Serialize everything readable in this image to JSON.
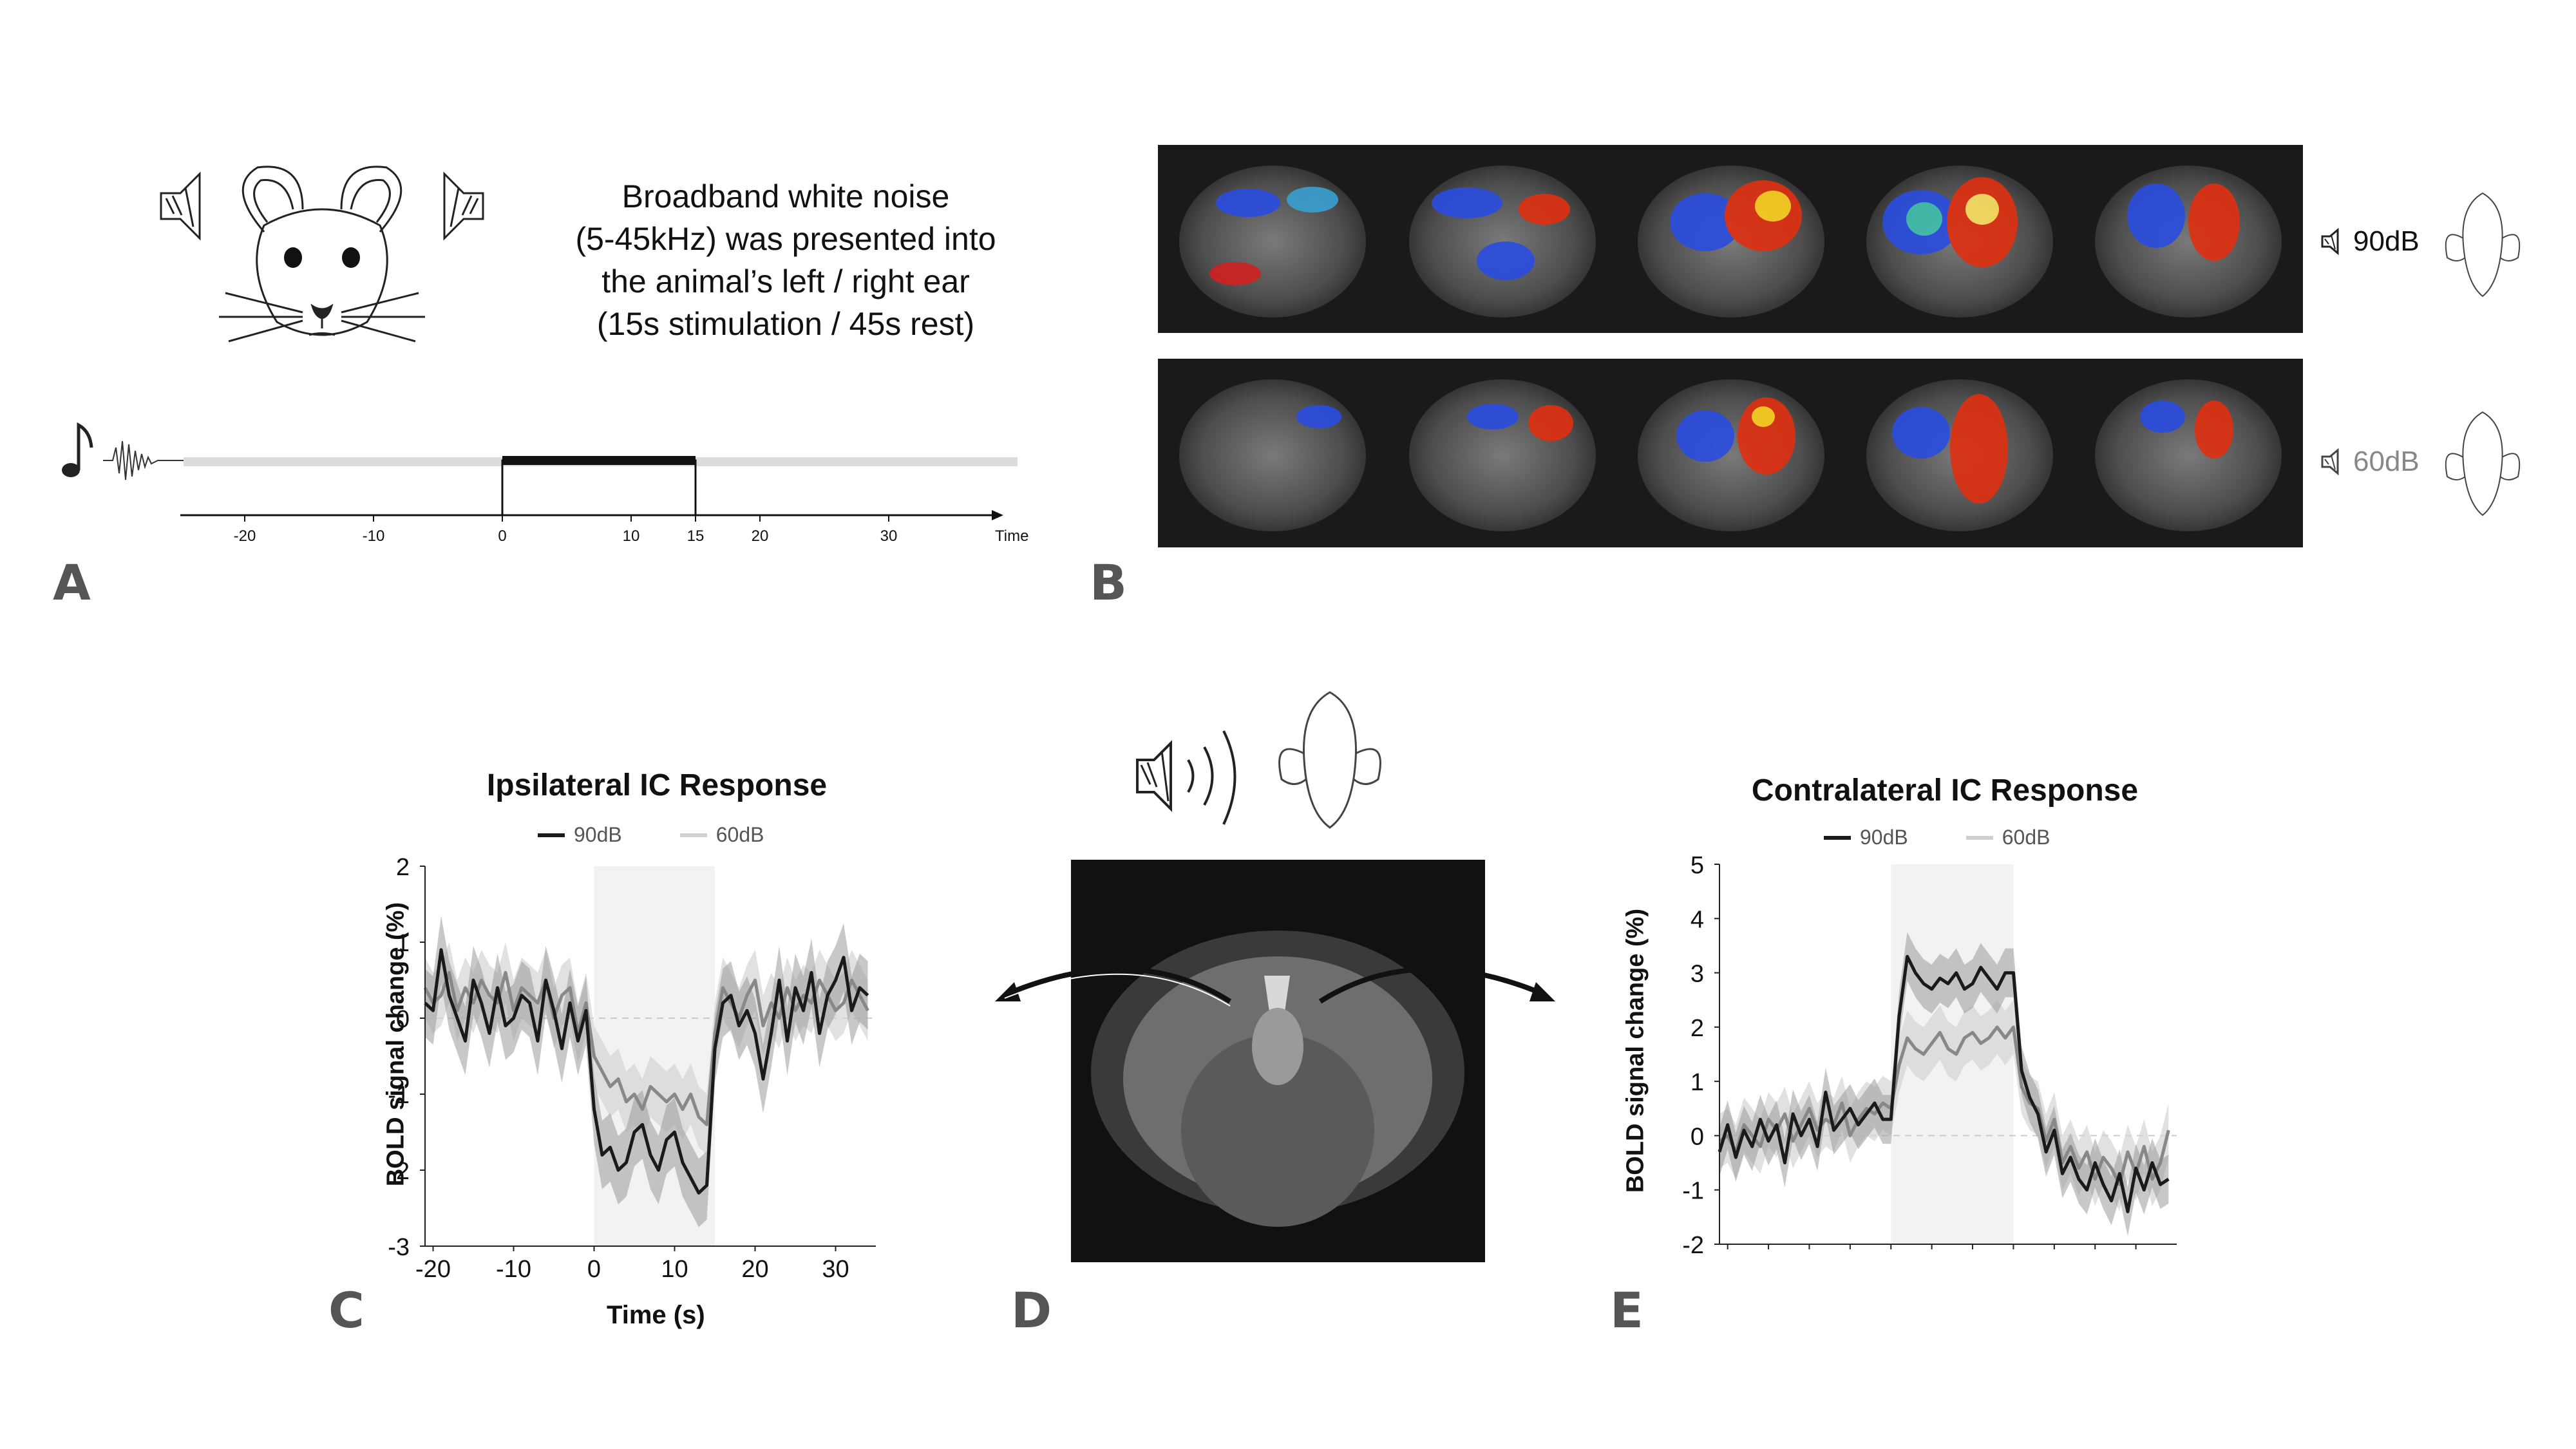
{
  "panels": {
    "a": "A",
    "b": "B",
    "c": "C",
    "d": "D",
    "e": "E"
  },
  "description": {
    "line1": "Broadband white noise",
    "line2": "(5-45kHz) was presented into",
    "line3": "the animal’s left / right ear",
    "line4": "(15s stimulation / 45s rest)"
  },
  "timeline": {
    "ticks": [
      "-20",
      "-10",
      "0",
      "10",
      "15",
      "20",
      "30"
    ],
    "tick_values": [
      -20,
      -10,
      0,
      10,
      15,
      20,
      30
    ],
    "axis_label": "Time",
    "stim_on": 0,
    "stim_off": 15
  },
  "panel_b": {
    "row1_label": "90dB",
    "row2_label": "60dB",
    "row1_color": "#111111",
    "row2_color": "#888888"
  },
  "chart_data": [
    {
      "type": "line",
      "title": "Ipsilateral IC Response",
      "xlabel": "Time (s)",
      "ylabel": "BOLD signal change (%)",
      "xlim": [
        -21,
        35
      ],
      "ylim": [
        -3,
        2
      ],
      "x_ticks": [
        "-20",
        "-10",
        "0",
        "10",
        "20",
        "30"
      ],
      "x_tick_values": [
        -20,
        -10,
        0,
        10,
        20,
        30
      ],
      "y_ticks": [
        "2",
        "1",
        "0",
        "-1",
        "-2",
        "-3"
      ],
      "y_tick_values": [
        2,
        1,
        0,
        -1,
        -2,
        -3
      ],
      "shaded_region": [
        0,
        15
      ],
      "x": [
        -21,
        -20,
        -19,
        -18,
        -17,
        -16,
        -15,
        -14,
        -13,
        -12,
        -11,
        -10,
        -9,
        -8,
        -7,
        -6,
        -5,
        -4,
        -3,
        -2,
        -1,
        0,
        1,
        2,
        3,
        4,
        5,
        6,
        7,
        8,
        9,
        10,
        11,
        12,
        13,
        14,
        15,
        16,
        17,
        18,
        19,
        20,
        21,
        22,
        23,
        24,
        25,
        26,
        27,
        28,
        29,
        30,
        31,
        32,
        33,
        34
      ],
      "series": [
        {
          "name": "90dB",
          "color": "#1a1a1a",
          "values": [
            0.2,
            0.1,
            0.9,
            0.3,
            0.0,
            -0.3,
            0.5,
            0.2,
            -0.2,
            0.4,
            -0.1,
            0.0,
            0.3,
            0.2,
            -0.3,
            0.5,
            0.1,
            -0.4,
            0.2,
            -0.3,
            0.1,
            -1.2,
            -1.8,
            -1.7,
            -2.0,
            -1.9,
            -1.5,
            -1.4,
            -1.8,
            -2.0,
            -1.6,
            -1.5,
            -1.9,
            -2.1,
            -2.3,
            -2.2,
            -0.4,
            0.2,
            0.3,
            -0.1,
            0.1,
            -0.2,
            -0.8,
            -0.2,
            0.5,
            -0.3,
            0.4,
            0.1,
            0.6,
            -0.2,
            0.3,
            0.5,
            0.8,
            0.1,
            0.4,
            0.3
          ],
          "band": 0.45
        },
        {
          "name": "60dB",
          "color": "#888888",
          "values": [
            0.4,
            0.2,
            0.3,
            0.6,
            0.1,
            0.4,
            0.2,
            0.5,
            0.3,
            0.2,
            0.6,
            0.1,
            0.4,
            0.3,
            0.2,
            0.5,
            0.0,
            0.3,
            0.4,
            -0.2,
            0.2,
            -0.5,
            -0.7,
            -0.9,
            -0.8,
            -1.1,
            -1.0,
            -1.2,
            -0.9,
            -1.0,
            -1.1,
            -1.0,
            -1.2,
            -1.0,
            -1.3,
            -1.4,
            -0.2,
            0.4,
            0.2,
            0.0,
            0.3,
            0.5,
            -0.1,
            0.2,
            0.0,
            0.4,
            0.1,
            0.3,
            0.2,
            0.5,
            0.3,
            0.1,
            0.2,
            0.5,
            0.3,
            0.1
          ],
          "band": 0.4
        }
      ],
      "legend_position": "top"
    },
    {
      "type": "line",
      "title": "Contralateral IC Response",
      "xlabel": "",
      "ylabel": "BOLD signal change (%)",
      "xlim": [
        -21,
        35
      ],
      "ylim": [
        -2,
        5
      ],
      "x_ticks": [],
      "y_ticks": [
        "5",
        "4",
        "3",
        "2",
        "1",
        "0",
        "-1",
        "-2"
      ],
      "y_tick_values": [
        5,
        4,
        3,
        2,
        1,
        0,
        -1,
        -2
      ],
      "shaded_region": [
        0,
        15
      ],
      "x": [
        -21,
        -20,
        -19,
        -18,
        -17,
        -16,
        -15,
        -14,
        -13,
        -12,
        -11,
        -10,
        -9,
        -8,
        -7,
        -6,
        -5,
        -4,
        -3,
        -2,
        -1,
        0,
        1,
        2,
        3,
        4,
        5,
        6,
        7,
        8,
        9,
        10,
        11,
        12,
        13,
        14,
        15,
        16,
        17,
        18,
        19,
        20,
        21,
        22,
        23,
        24,
        25,
        26,
        27,
        28,
        29,
        30,
        31,
        32,
        33,
        34
      ],
      "series": [
        {
          "name": "90dB",
          "color": "#1a1a1a",
          "values": [
            -0.3,
            0.2,
            -0.4,
            0.1,
            -0.2,
            0.3,
            -0.1,
            0.2,
            -0.5,
            0.4,
            0.0,
            0.3,
            -0.2,
            0.8,
            0.1,
            0.3,
            0.5,
            0.2,
            0.4,
            0.6,
            0.3,
            0.3,
            2.2,
            3.3,
            3.0,
            2.8,
            2.7,
            2.9,
            2.8,
            3.0,
            2.7,
            2.8,
            3.1,
            2.9,
            2.7,
            3.0,
            3.0,
            1.2,
            0.7,
            0.4,
            -0.3,
            0.1,
            -0.7,
            -0.4,
            -0.8,
            -1.0,
            -0.5,
            -0.9,
            -1.2,
            -0.7,
            -1.4,
            -0.6,
            -1.0,
            -0.5,
            -0.9,
            -0.8
          ],
          "band": 0.45
        },
        {
          "name": "60dB",
          "color": "#888888",
          "values": [
            -0.1,
            0.0,
            -0.3,
            0.2,
            0.0,
            -0.2,
            0.3,
            0.1,
            0.4,
            -0.1,
            0.2,
            0.5,
            0.1,
            0.3,
            0.2,
            0.6,
            0.0,
            0.3,
            0.5,
            0.4,
            0.6,
            0.5,
            1.3,
            1.8,
            1.6,
            1.5,
            1.7,
            1.9,
            1.6,
            1.5,
            1.8,
            1.9,
            1.7,
            1.8,
            2.0,
            1.8,
            2.0,
            0.9,
            0.6,
            0.5,
            -0.1,
            0.3,
            -0.5,
            -0.2,
            -0.6,
            -0.3,
            -0.8,
            -0.4,
            -0.6,
            -0.9,
            -0.3,
            -0.7,
            -0.2,
            -0.8,
            -0.5,
            0.1
          ],
          "band": 0.5
        }
      ],
      "legend_position": "top"
    }
  ]
}
